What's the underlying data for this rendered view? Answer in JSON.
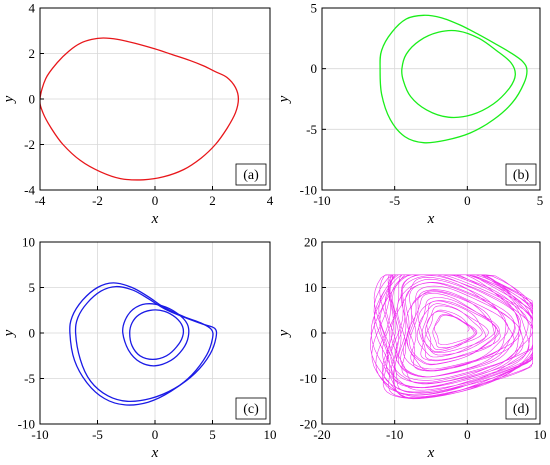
{
  "chart_data": [
    {
      "type": "line",
      "panel_label": "(a)",
      "xlabel": "x",
      "ylabel": "y",
      "xlim": [
        -4,
        4
      ],
      "ylim": [
        -4,
        4
      ],
      "xticks": [
        -4,
        -2,
        0,
        2,
        4
      ],
      "yticks": [
        -4,
        -2,
        0,
        2,
        4
      ],
      "grid": true,
      "color": "#e8161a",
      "series": [
        {
          "kind": "closed_curve",
          "x": [
            -4.0,
            -3.8,
            -3.4,
            -3.0,
            -2.6,
            -2.2,
            -1.8,
            -1.3,
            -0.7,
            0.0,
            0.6,
            1.2,
            1.7,
            2.1,
            2.5,
            2.8,
            2.9,
            2.8,
            2.5,
            2.1,
            1.6,
            1.0,
            0.3,
            -0.4,
            -1.2,
            -1.9,
            -2.6,
            -3.2,
            -3.6,
            -3.9,
            -4.0
          ],
          "y": [
            0.0,
            0.9,
            1.6,
            2.1,
            2.45,
            2.62,
            2.68,
            2.62,
            2.45,
            2.2,
            1.95,
            1.7,
            1.45,
            1.2,
            0.95,
            0.5,
            0.0,
            -0.6,
            -1.3,
            -2.0,
            -2.6,
            -3.1,
            -3.42,
            -3.55,
            -3.5,
            -3.2,
            -2.7,
            -2.0,
            -1.3,
            -0.6,
            0.0
          ]
        }
      ]
    },
    {
      "type": "line",
      "panel_label": "(b)",
      "xlabel": "x",
      "ylabel": "y",
      "xlim": [
        -10,
        5
      ],
      "ylim": [
        -10,
        5
      ],
      "xticks": [
        -10,
        -5,
        0,
        5
      ],
      "yticks": [
        -10,
        -5,
        0,
        5
      ],
      "grid": true,
      "color": "#1aee1a",
      "series": [
        {
          "kind": "closed_curve",
          "x": [
            -6.0,
            -5.9,
            -5.2,
            -4.2,
            -3.0,
            -1.8,
            -0.5,
            0.8,
            2.0,
            3.0,
            3.8,
            4.1,
            3.9,
            3.1,
            1.8,
            0.2,
            -1.5,
            -3.0,
            -4.3,
            -5.3,
            -5.9,
            -6.0
          ],
          "y": [
            0.0,
            1.5,
            3.0,
            4.1,
            4.4,
            4.2,
            3.6,
            2.8,
            2.0,
            1.3,
            0.6,
            -0.1,
            -1.2,
            -2.8,
            -4.2,
            -5.3,
            -5.9,
            -6.1,
            -5.6,
            -4.2,
            -2.1,
            0.0
          ]
        },
        {
          "kind": "closed_curve",
          "x": [
            -4.5,
            -4.2,
            -3.3,
            -2.0,
            -0.6,
            0.8,
            2.0,
            3.0,
            3.3,
            2.9,
            1.8,
            0.3,
            -1.3,
            -2.8,
            -3.9,
            -4.4,
            -4.5
          ],
          "y": [
            0.0,
            1.2,
            2.3,
            3.0,
            3.1,
            2.5,
            1.5,
            0.5,
            -0.5,
            -1.6,
            -2.9,
            -3.8,
            -4.0,
            -3.4,
            -2.3,
            -1.0,
            0.0
          ]
        }
      ]
    },
    {
      "type": "line",
      "panel_label": "(c)",
      "xlabel": "x",
      "ylabel": "y",
      "xlim": [
        -10,
        10
      ],
      "ylim": [
        -10,
        10
      ],
      "xticks": [
        -10,
        -5,
        0,
        5,
        10
      ],
      "yticks": [
        -10,
        -5,
        0,
        5,
        10
      ],
      "grid": true,
      "color": "#1a1ae6",
      "series": [
        {
          "kind": "closed_curve",
          "x": [
            -7.4,
            -7.2,
            -6.3,
            -5.0,
            -3.6,
            -2.0,
            -0.6,
            0.8,
            2.5,
            4.0,
            4.9,
            5.0,
            4.5,
            3.2,
            1.4,
            -0.6,
            -2.6,
            -4.4,
            -5.9,
            -7.0,
            -7.4
          ],
          "y": [
            0.0,
            1.8,
            3.6,
            5.0,
            5.5,
            5.0,
            4.0,
            2.8,
            1.8,
            1.1,
            0.4,
            -0.6,
            -2.4,
            -4.6,
            -6.4,
            -7.6,
            -7.9,
            -7.2,
            -5.5,
            -3.0,
            0.0
          ]
        },
        {
          "kind": "closed_curve",
          "x": [
            -6.9,
            -6.7,
            -5.9,
            -4.7,
            -3.4,
            -1.9,
            -0.5,
            0.9,
            2.6,
            4.1,
            5.2,
            5.3,
            4.8,
            3.5,
            1.7,
            -0.4,
            -2.4,
            -4.1,
            -5.6,
            -6.5,
            -6.9
          ],
          "y": [
            0.0,
            1.7,
            3.3,
            4.6,
            5.1,
            4.7,
            3.7,
            2.6,
            1.7,
            1.0,
            0.5,
            -0.5,
            -2.3,
            -4.4,
            -6.1,
            -7.2,
            -7.5,
            -6.9,
            -5.3,
            -2.9,
            0.0
          ]
        },
        {
          "kind": "closed_curve",
          "x": [
            -2.8,
            -2.6,
            -1.9,
            -0.8,
            0.6,
            1.9,
            2.8,
            2.9,
            2.4,
            1.4,
            0.0,
            -1.3,
            -2.3,
            -2.8
          ],
          "y": [
            0.0,
            1.4,
            2.6,
            3.2,
            3.0,
            2.2,
            1.0,
            -0.4,
            -1.8,
            -3.0,
            -3.6,
            -3.2,
            -1.9,
            0.0
          ]
        },
        {
          "kind": "closed_curve",
          "x": [
            -2.2,
            -2.0,
            -1.4,
            -0.4,
            0.8,
            1.8,
            2.4,
            2.4,
            1.9,
            1.0,
            -0.2,
            -1.3,
            -2.0,
            -2.2
          ],
          "y": [
            0.0,
            1.1,
            2.0,
            2.5,
            2.4,
            1.7,
            0.7,
            -0.4,
            -1.5,
            -2.5,
            -2.9,
            -2.5,
            -1.4,
            0.0
          ]
        }
      ]
    },
    {
      "type": "line",
      "panel_label": "(d)",
      "xlabel": "x",
      "ylabel": "y",
      "xlim": [
        -20,
        10
      ],
      "ylim": [
        -20,
        20
      ],
      "xticks": [
        -20,
        -10,
        0,
        10
      ],
      "yticks": [
        -20,
        -10,
        0,
        10,
        20
      ],
      "grid": true,
      "color": "#ee1aee",
      "series": [
        {
          "kind": "chaotic_attractor",
          "x_extent": [
            -14.8,
            9.0
          ],
          "y_extent": [
            -18.5,
            12.8
          ]
        }
      ]
    }
  ]
}
